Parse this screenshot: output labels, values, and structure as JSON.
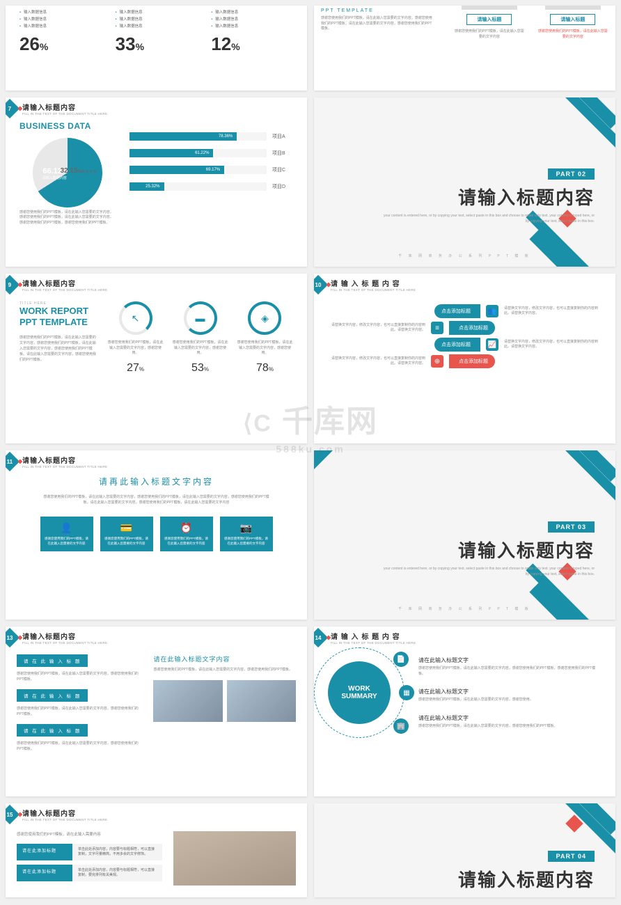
{
  "colors": {
    "primary": "#1a8fa8",
    "accent": "#e8554d",
    "text": "#333",
    "muted": "#888",
    "bg": "#fff"
  },
  "watermark": {
    "logo": "千库网",
    "url": "588ku.com"
  },
  "hdr": {
    "sub": "FILL IN THE TEXT OF THE DOCUMENT TITLE HERE"
  },
  "top_l": {
    "items": [
      "输入数据信息",
      "输入数据信息",
      "输入数据信息"
    ],
    "stats": [
      {
        "n": "26",
        "u": "%"
      },
      {
        "n": "33",
        "u": "%"
      },
      {
        "n": "12",
        "u": "%"
      }
    ]
  },
  "top_r": {
    "desc": "感谢您使用我们的PPT模板，请在此输入您需要的文字内容，感谢您使用我们的PPT模板，请在此输入您需要的文字内容，感谢您使用我们的PPT模板。",
    "title": "PPT TEMPLATE",
    "cards": [
      {
        "tag": "请输入标题",
        "txt": "感谢您使用我们的PPT模板，请在此输入您需要的文字内容"
      },
      {
        "tag": "请输入标题",
        "txt": "感谢您使用我们的PPT模板，请在此输入您需要的文字内容"
      }
    ]
  },
  "s7": {
    "num": "7",
    "title": "请输入标题内容",
    "heading": "BUSINESS DATA",
    "desc": "感谢您使用我们的PPT模板，请在此输入您需要的文字内容，感谢您使用我们的PPT模板，请在此输入您需要的文字内容，感谢您使用我们的PPT模板，感谢您使用我们的PPT模板。",
    "pie": {
      "main": "66.12",
      "main_lbl": "请输入数据内容",
      "side": "32.15",
      "side_lbl": "数 据 内 容"
    },
    "bars": [
      {
        "lbl": "项目A",
        "val": 78.36,
        "pct": "78.36%"
      },
      {
        "lbl": "项目B",
        "val": 61.22,
        "pct": "61.22%"
      },
      {
        "lbl": "项目C",
        "val": 69.17,
        "pct": "69.17%"
      },
      {
        "lbl": "项目D",
        "val": 25.32,
        "pct": "25.32%"
      }
    ]
  },
  "sec2": {
    "part": "PART  02",
    "title": "请输入标题内容",
    "sub": "your content is entered here, or by copying your text, select paste in this box and choose to retain only text. your content is typed here, or by copying your text, select paste in this box.",
    "foot": "千 库 网 商 务 办 公 系 列 P P T 模 板"
  },
  "s9": {
    "num": "9",
    "title": "请输入标题内容",
    "pre": "TITLE HERE",
    "heading": "WORK REPORT PPT TEMPLATE",
    "desc": "感谢您使用我们的PPT模板，请在此输入您需要的文字内容，感谢您使用我们的PPT模板，请在此输入您需要的文字内容，感谢您使用我们的PPT模板。请在此输入您需要的文字内容，感谢您使用我们的PPT模板。",
    "cols": [
      {
        "ico": "↖",
        "txt": "感谢您使用我们的PPT模板，请在此输入您需要的文字内容，感谢您使用。",
        "pct": "27"
      },
      {
        "ico": "▬",
        "txt": "感谢您使用我们的PPT模板，请在此输入您需要的文字内容，感谢您使用。",
        "pct": "53"
      },
      {
        "ico": "◈",
        "txt": "感谢您使用我们的PPT模板，请在此输入您需要的文字内容，感谢您使用。",
        "pct": "78"
      }
    ]
  },
  "s10": {
    "num": "10",
    "title": "请 输 入 标 题 内 容",
    "rows": [
      {
        "tag": "点击添加标题",
        "ico": "👥",
        "txt": "请替换文字内容，修改文字内容，也可以直接复制你的内容到此。请替换文字内容。",
        "side": "left"
      },
      {
        "tag": "点击添加标题",
        "ico": "≡",
        "txt": "请替换文字内容，修改文字内容，也可以直接复制你的内容到此。请替换文字内容。",
        "side": "right"
      },
      {
        "tag": "点击添加标题",
        "ico": "📈",
        "txt": "请替换文字内容，修改文字内容，也可以直接复制你的内容到此。请替换文字内容。",
        "side": "left"
      },
      {
        "tag": "点击添加标题",
        "ico": "⊕",
        "txt": "请替换文字内容，修改文字内容，也可以直接复制你的内容到此。请替换文字内容。",
        "side": "right",
        "orange": true
      }
    ]
  },
  "s11": {
    "num": "11",
    "title": "请输入标题内容",
    "heading": "请再此输入标题文字内容",
    "desc": "感谢您使用我们的PPT模板，请在此输入您需要的文字内容，感谢您使用我们的PPT模板，请在此输入您需要的文字内容，感谢您使用我们的PPT模板，请在此输入您需要的文字内容，感谢您使用我们的PPT模板，请在此输入您需要的文字内容",
    "boxes": [
      {
        "ico": "👤",
        "txt": "感谢您使用我们的PPT模板，请在此输入您需要的文字内容"
      },
      {
        "ico": "💳",
        "txt": "感谢您使用我们的PPT模板，请在此输入您需要的文字内容"
      },
      {
        "ico": "⏰",
        "txt": "感谢您使用我们的PPT模板，请在此输入您需要的文字内容"
      },
      {
        "ico": "📷",
        "txt": "感谢您使用我们的PPT模板，请在此输入您需要的文字内容"
      }
    ]
  },
  "sec3": {
    "part": "PART  03",
    "title": "请输入标题内容",
    "sub": "your content is entered here, or by copying your text, select paste in this box and choose to retain only text. your content is typed here, or by copying your text, select paste in this box.",
    "foot": "千 库 网 商 务 办 公 系 列 P P T 模 板"
  },
  "s13": {
    "num": "13",
    "title": "请输入标题内容",
    "items": [
      {
        "tag": "请 在 此 输 入 标 题",
        "txt": "感谢您使用我们的PPT模板，请在此输入您需要的文字内容，感谢您使用我们的PPT模板。"
      },
      {
        "tag": "请 在 此 输 入 标 题",
        "txt": "感谢您使用我们的PPT模板，请在此输入您需要的文字内容，感谢您使用我们的PPT模板。"
      },
      {
        "tag": "请 在 此 输 入 标 题",
        "txt": "感谢您使用我们的PPT模板，请在此输入您需要的文字内容，感谢您使用我们的PPT模板。"
      }
    ],
    "r_title": "请在此输入标题文字内容",
    "r_desc": "感谢您使用我们的PPT模板，请在此输入您需要的文字内容，感谢您使用我们的PPT模板。"
  },
  "s14": {
    "num": "14",
    "title": "请 输 入 标 题 内 容",
    "center": "WORK SUMMARY",
    "items": [
      {
        "ico": "📄",
        "t": "请在此输入标题文字",
        "d": "感谢您使用我们的PPT模板，请在此输入您需要的文字内容，感谢您使用我们的PPT模板，感谢您使用我们的PPT模板。"
      },
      {
        "ico": "▦",
        "t": "请在此输入标题文字",
        "d": "感谢您使用我们的PPT模板，请在此输入您需要的文字内容，感谢您使用。"
      },
      {
        "ico": "🏢",
        "t": "请在此输入标题文字",
        "d": "感谢您使用我们的PPT模板，请在此输入您需要的文字内容，感谢您使用我们的PPT模板。"
      }
    ]
  },
  "s15": {
    "num": "15",
    "title": "请输入标题内容",
    "lead": "感谢您使用我们的PPT模板，请在此输入需要内容",
    "rows": [
      {
        "tag": "请在此添加标题",
        "txt": "单击此处添加内容，内容要与标题相符，可以直接复制，文字尽量精简，不用多余的文字修饰。"
      },
      {
        "tag": "请在此添加标题",
        "txt": "单击此处添加内容，内容要与标题相符，可以直接复制，要完排列有关美观。"
      }
    ]
  },
  "sec4": {
    "part": "PART  04",
    "title": "请输入标题内容"
  }
}
